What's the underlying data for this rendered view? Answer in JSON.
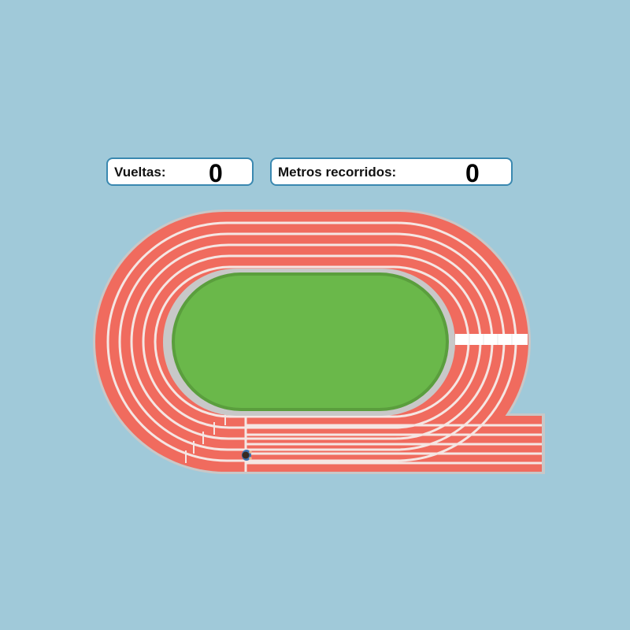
{
  "hud": {
    "laps_label": "Vueltas:",
    "laps_value": "0",
    "meters_label": "Metros recorridos:",
    "meters_value": "0"
  },
  "track": {
    "lanes": 6,
    "colors": {
      "background": "#a0c9d9",
      "track": "#f06b5e",
      "lane_lines": "#f5e6e3",
      "border": "#c8c8c8",
      "infield": "#6ab84a",
      "infield_border": "#5a9e3d",
      "finish_line": "#ffffff",
      "counter_border": "#3a88b0"
    },
    "icons": {
      "runner": "runner-icon"
    }
  }
}
